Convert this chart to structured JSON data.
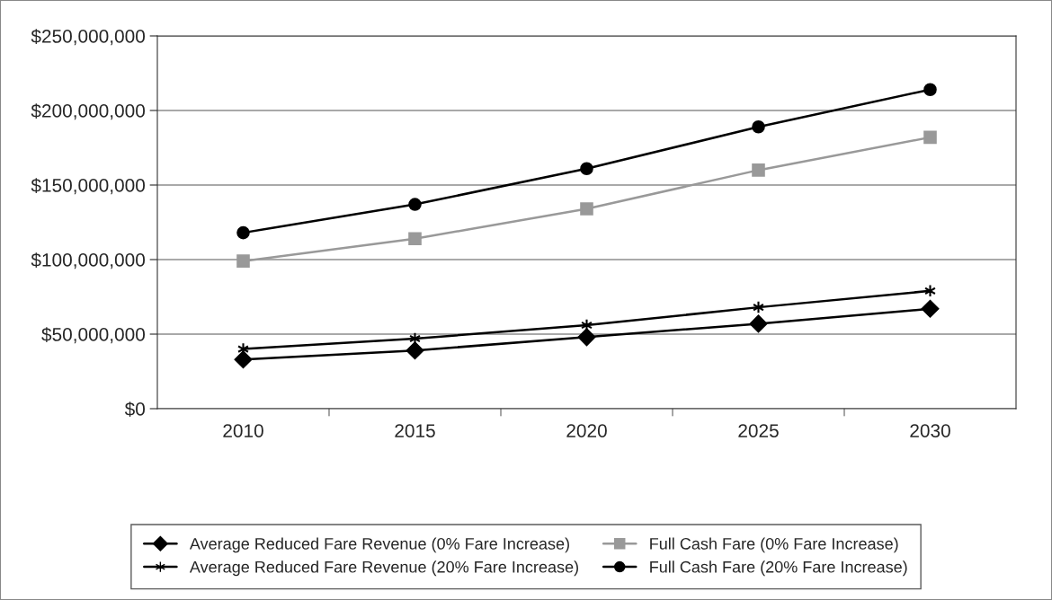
{
  "chart_data": {
    "type": "line",
    "categories": [
      "2010",
      "2015",
      "2020",
      "2025",
      "2030"
    ],
    "series": [
      {
        "name": "Average Reduced Fare Revenue (0% Fare Increase)",
        "color": "#000000",
        "marker": "diamond",
        "values": [
          33000000,
          39000000,
          48000000,
          57000000,
          67000000
        ]
      },
      {
        "name": "Full Cash Fare (0% Fare Increase)",
        "color": "#999999",
        "marker": "square",
        "values": [
          99000000,
          114000000,
          134000000,
          160000000,
          182000000
        ]
      },
      {
        "name": "Average Reduced Fare Revenue (20% Fare Increase)",
        "color": "#000000",
        "marker": "cross",
        "values": [
          40000000,
          47000000,
          56000000,
          68000000,
          79000000
        ]
      },
      {
        "name": "Full Cash Fare (20% Fare Increase)",
        "color": "#000000",
        "marker": "circle",
        "values": [
          118000000,
          137000000,
          161000000,
          189000000,
          214000000
        ]
      }
    ],
    "ylim": [
      0,
      250000000
    ],
    "yticks": [
      {
        "value": 0,
        "label": "$0"
      },
      {
        "value": 50000000,
        "label": "$50,000,000"
      },
      {
        "value": 100000000,
        "label": "$100,000,000"
      },
      {
        "value": 150000000,
        "label": "$150,000,000"
      },
      {
        "value": 200000000,
        "label": "$200,000,000"
      },
      {
        "value": 250000000,
        "label": "$250,000,000"
      }
    ],
    "grid": "y",
    "legend": "bottom",
    "line_style": "solid"
  }
}
